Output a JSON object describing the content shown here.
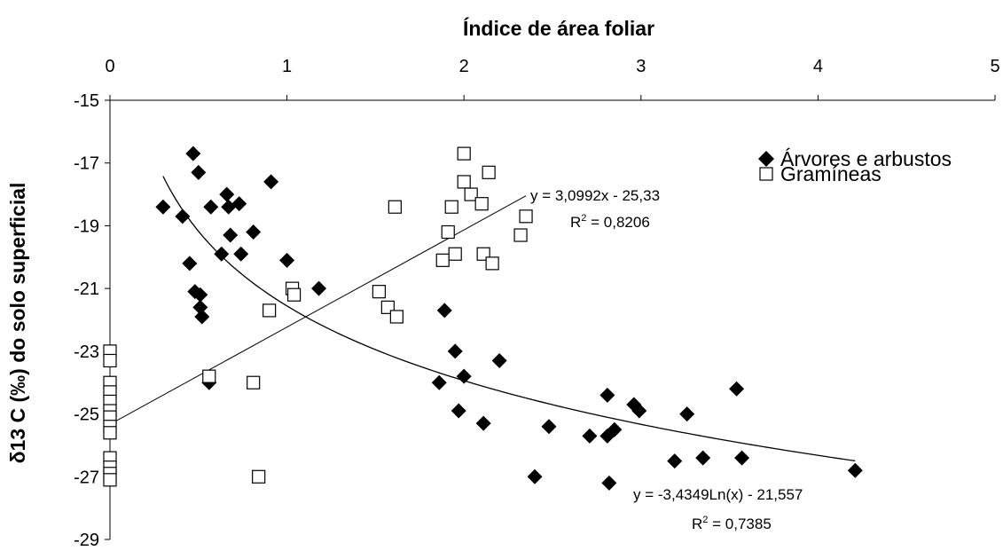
{
  "chart_data": {
    "type": "scatter",
    "xlabel": "Índice de área foliar",
    "ylabel": "δ13 C (‰) do solo superficial",
    "xlim": [
      0,
      5
    ],
    "ylim": [
      -29,
      -15
    ],
    "x_ticks": [
      "0",
      "1",
      "2",
      "3",
      "4",
      "5"
    ],
    "y_ticks": [
      "-15",
      "-17",
      "-19",
      "-21",
      "-23",
      "-25",
      "-27",
      "-29"
    ],
    "x_axis_position": "top",
    "grid": false,
    "legend_position": "top-right",
    "series": [
      {
        "name": "Árvores e arbustos",
        "marker": "filled-diamond",
        "color": "#000000",
        "points": [
          [
            0.3,
            -18.4
          ],
          [
            0.41,
            -18.7
          ],
          [
            0.45,
            -20.2
          ],
          [
            0.47,
            -16.7
          ],
          [
            0.48,
            -21.1
          ],
          [
            0.5,
            -17.3
          ],
          [
            0.51,
            -21.2
          ],
          [
            0.51,
            -21.6
          ],
          [
            0.52,
            -21.9
          ],
          [
            0.56,
            -24.0
          ],
          [
            0.57,
            -18.4
          ],
          [
            0.63,
            -19.9
          ],
          [
            0.66,
            -18.0
          ],
          [
            0.67,
            -18.4
          ],
          [
            0.68,
            -19.3
          ],
          [
            0.73,
            -18.3
          ],
          [
            0.74,
            -19.9
          ],
          [
            0.81,
            -19.2
          ],
          [
            0.91,
            -17.6
          ],
          [
            1.0,
            -20.1
          ],
          [
            1.18,
            -21.0
          ],
          [
            1.86,
            -24.0
          ],
          [
            1.89,
            -21.7
          ],
          [
            1.95,
            -23.0
          ],
          [
            1.97,
            -24.9
          ],
          [
            2.0,
            -23.8
          ],
          [
            2.11,
            -25.3
          ],
          [
            2.2,
            -23.3
          ],
          [
            2.4,
            -27.0
          ],
          [
            2.48,
            -25.4
          ],
          [
            2.71,
            -25.7
          ],
          [
            2.81,
            -24.4
          ],
          [
            2.81,
            -25.7
          ],
          [
            2.82,
            -27.2
          ],
          [
            2.85,
            -25.5
          ],
          [
            2.96,
            -24.7
          ],
          [
            2.99,
            -24.9
          ],
          [
            3.19,
            -26.5
          ],
          [
            3.26,
            -25.0
          ],
          [
            3.35,
            -26.4
          ],
          [
            3.54,
            -24.2
          ],
          [
            3.57,
            -26.4
          ],
          [
            4.21,
            -26.8
          ]
        ]
      },
      {
        "name": "Gramíneas",
        "marker": "open-square",
        "color": "#000000",
        "points": [
          [
            0,
            -23.0
          ],
          [
            0,
            -23.3
          ],
          [
            0,
            -24.0
          ],
          [
            0,
            -24.3
          ],
          [
            0,
            -24.6
          ],
          [
            0,
            -24.9
          ],
          [
            0,
            -25.1
          ],
          [
            0,
            -25.4
          ],
          [
            0,
            -25.6
          ],
          [
            0,
            -26.4
          ],
          [
            0,
            -26.7
          ],
          [
            0,
            -26.9
          ],
          [
            0,
            -27.1
          ],
          [
            0.56,
            -23.8
          ],
          [
            0.81,
            -24.0
          ],
          [
            0.84,
            -27.0
          ],
          [
            0.9,
            -21.7
          ],
          [
            1.03,
            -21.0
          ],
          [
            1.04,
            -21.2
          ],
          [
            1.52,
            -21.1
          ],
          [
            1.57,
            -21.6
          ],
          [
            1.61,
            -18.4
          ],
          [
            1.62,
            -21.9
          ],
          [
            1.88,
            -20.1
          ],
          [
            1.91,
            -19.2
          ],
          [
            1.93,
            -18.4
          ],
          [
            1.95,
            -19.9
          ],
          [
            2.0,
            -16.7
          ],
          [
            2.0,
            -17.6
          ],
          [
            2.04,
            -18.0
          ],
          [
            2.1,
            -18.3
          ],
          [
            2.11,
            -19.9
          ],
          [
            2.14,
            -17.3
          ],
          [
            2.16,
            -20.2
          ],
          [
            2.32,
            -19.3
          ],
          [
            2.35,
            -18.7
          ]
        ]
      }
    ],
    "trendlines": [
      {
        "series": "Gramíneas",
        "type": "linear",
        "slope": 3.0992,
        "intercept": -25.33,
        "x_range": [
          0,
          2.35
        ],
        "equation": "y = 3,0992x - 25,33",
        "r2_label": "R",
        "r2_value": "2",
        "r2_text": " = 0,8206"
      },
      {
        "series": "Árvores e arbustos",
        "type": "log",
        "a": -3.4349,
        "b": -21.557,
        "x_range": [
          0.3,
          4.21
        ],
        "equation": "y = -3,4349Ln(x) - 21,557",
        "r2_label": "R",
        "r2_value": "2",
        "r2_text": " = 0,7385"
      }
    ]
  }
}
